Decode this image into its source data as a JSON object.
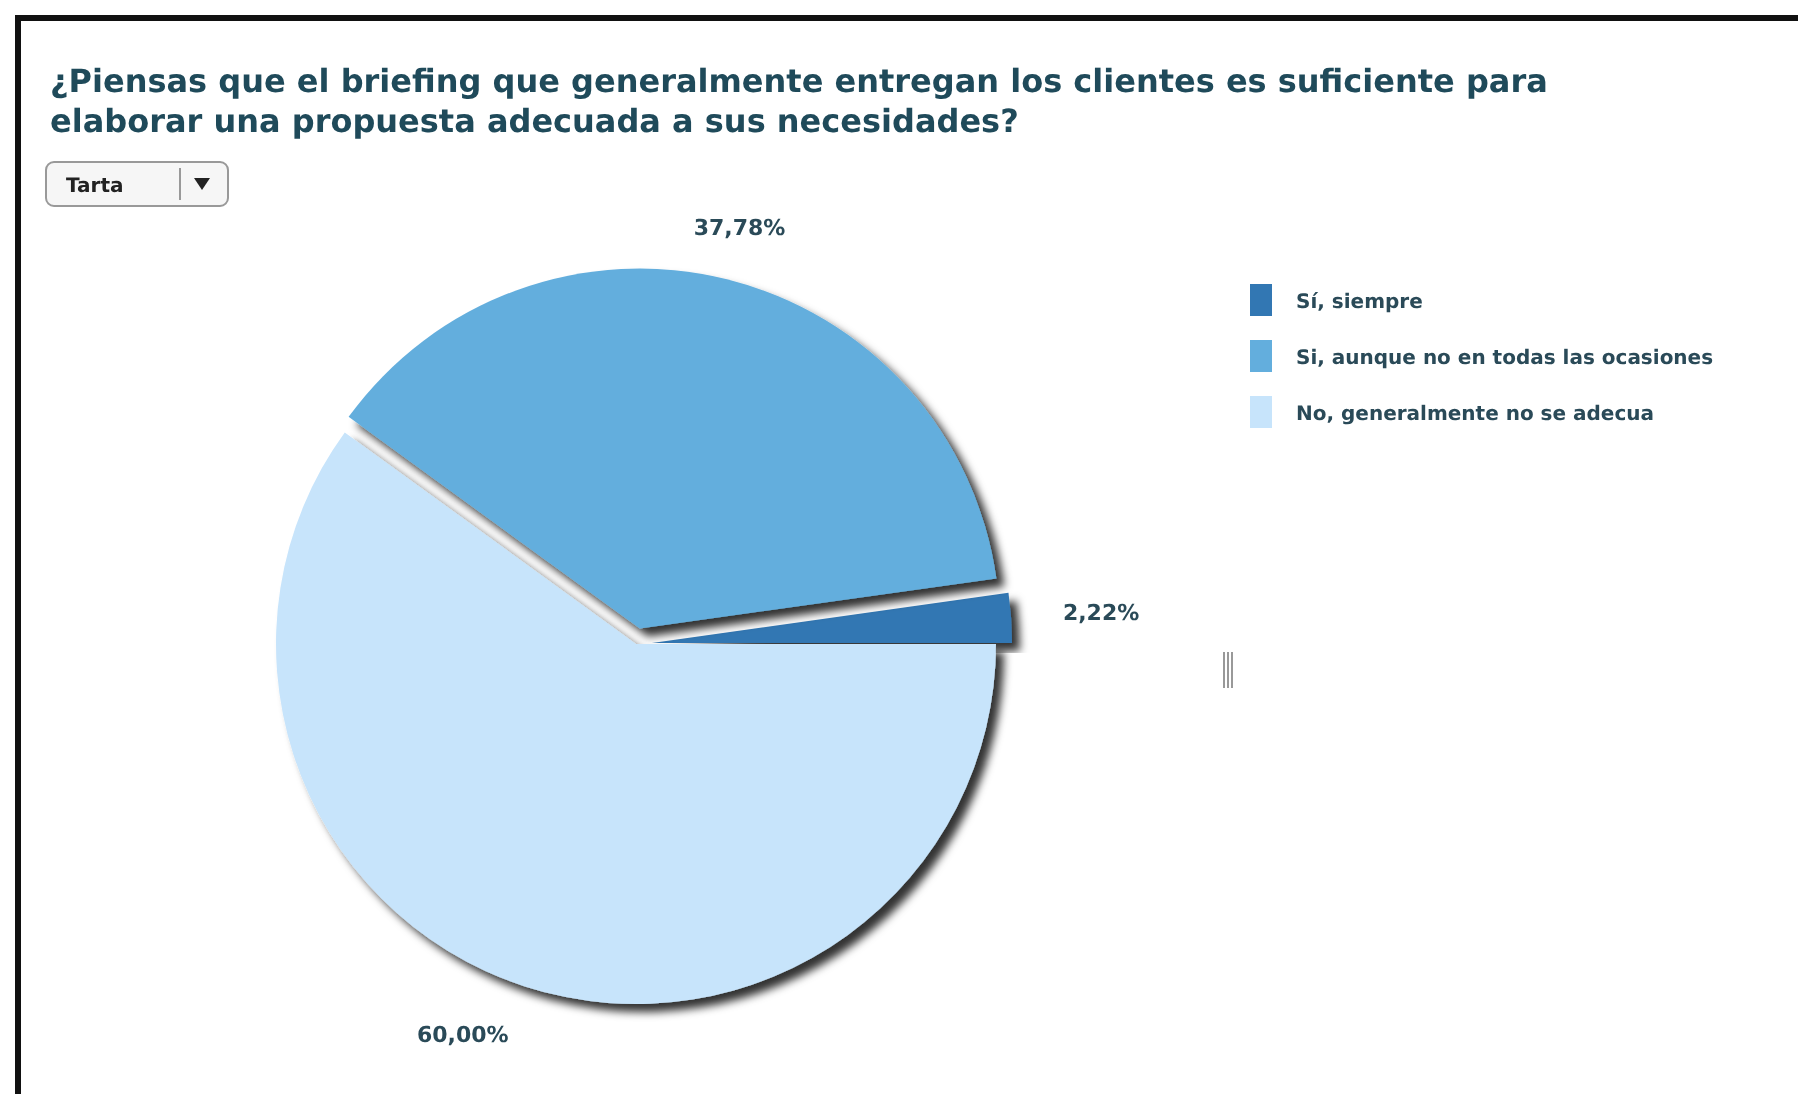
{
  "chart_data": {
    "type": "pie",
    "title": "¿Piensas que el briefing que generalmente entregan los clientes es suficiente para elaborar una propuesta adecuada a sus necesidades?",
    "categories": [
      "Sí, siempre",
      "Si, aunque no en todas las ocasiones",
      "No, generalmente no se adecua"
    ],
    "values": [
      2.22,
      37.78,
      60.0
    ],
    "value_labels": [
      "2,22%",
      "37,78%",
      "60,00%"
    ],
    "colors": [
      "#3277b3",
      "#63aedd",
      "#c7e4fb"
    ],
    "legend": "right",
    "annotations": [
      "Tarta"
    ]
  }
}
